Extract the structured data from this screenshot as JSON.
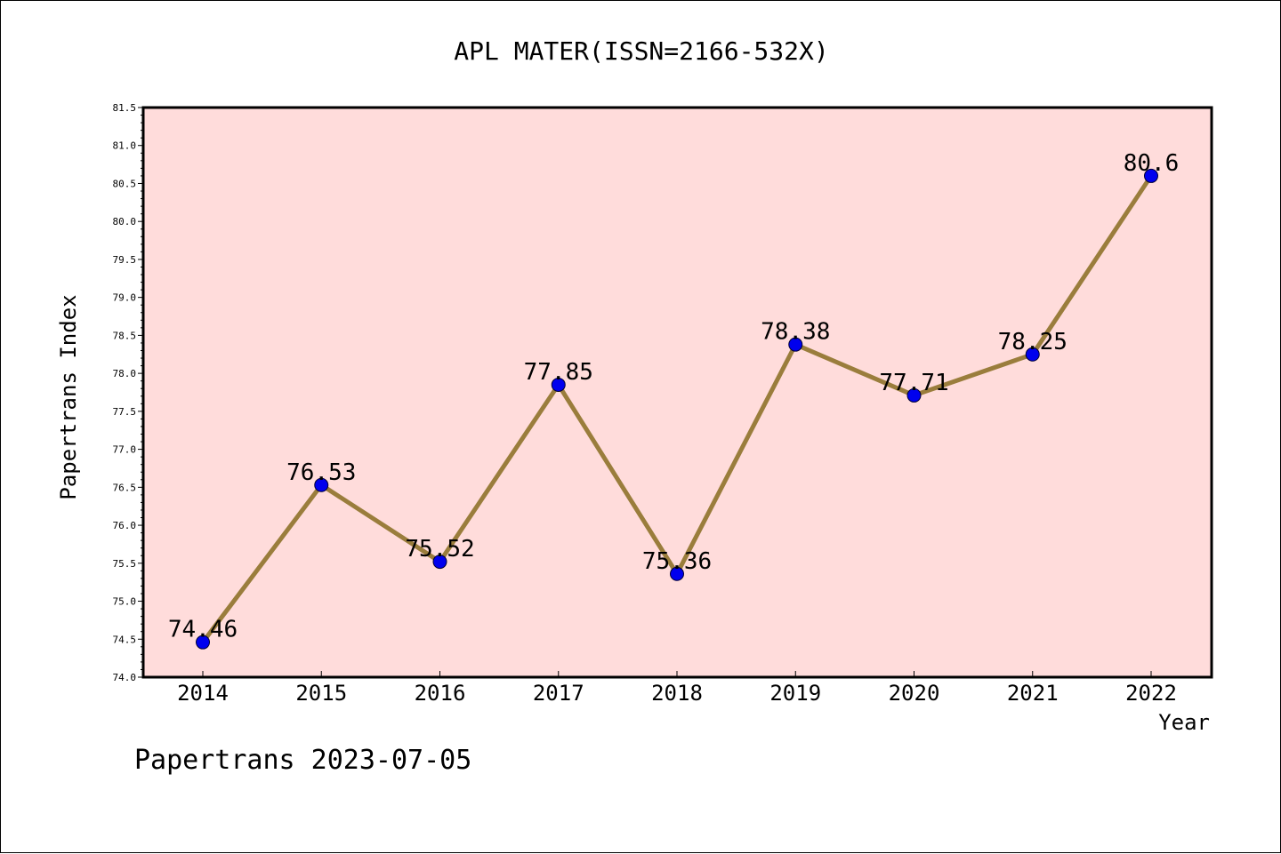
{
  "chart_data": {
    "type": "line",
    "title": "APL MATER(ISSN=2166-532X)",
    "xlabel": "Year",
    "ylabel": "Papertrans Index",
    "categories": [
      "2014",
      "2015",
      "2016",
      "2017",
      "2018",
      "2019",
      "2020",
      "2021",
      "2022"
    ],
    "series": [
      {
        "values": [
          74.46,
          76.53,
          75.52,
          77.85,
          75.36,
          78.38,
          77.71,
          78.25,
          80.6
        ],
        "labels": [
          "74.46",
          "76.53",
          "75.52",
          "77.85",
          "75.36",
          "78.38",
          "77.71",
          "78.25",
          "80.6"
        ]
      }
    ],
    "ylim": [
      74.0,
      81.5
    ],
    "yticks": [
      "74.0",
      "74.5",
      "75.0",
      "75.5",
      "76.0",
      "76.5",
      "77.0",
      "77.5",
      "78.0",
      "78.5",
      "79.0",
      "79.5",
      "80.0",
      "80.5",
      "81.0",
      "81.5"
    ],
    "grid": false,
    "legend": "none"
  },
  "footer": {
    "text": "Papertrans 2023-07-05"
  },
  "colors": {
    "plot_background": "#ffdcdb",
    "line": "#9a7d3c",
    "marker": "#0000ee",
    "axis": "#000000"
  }
}
